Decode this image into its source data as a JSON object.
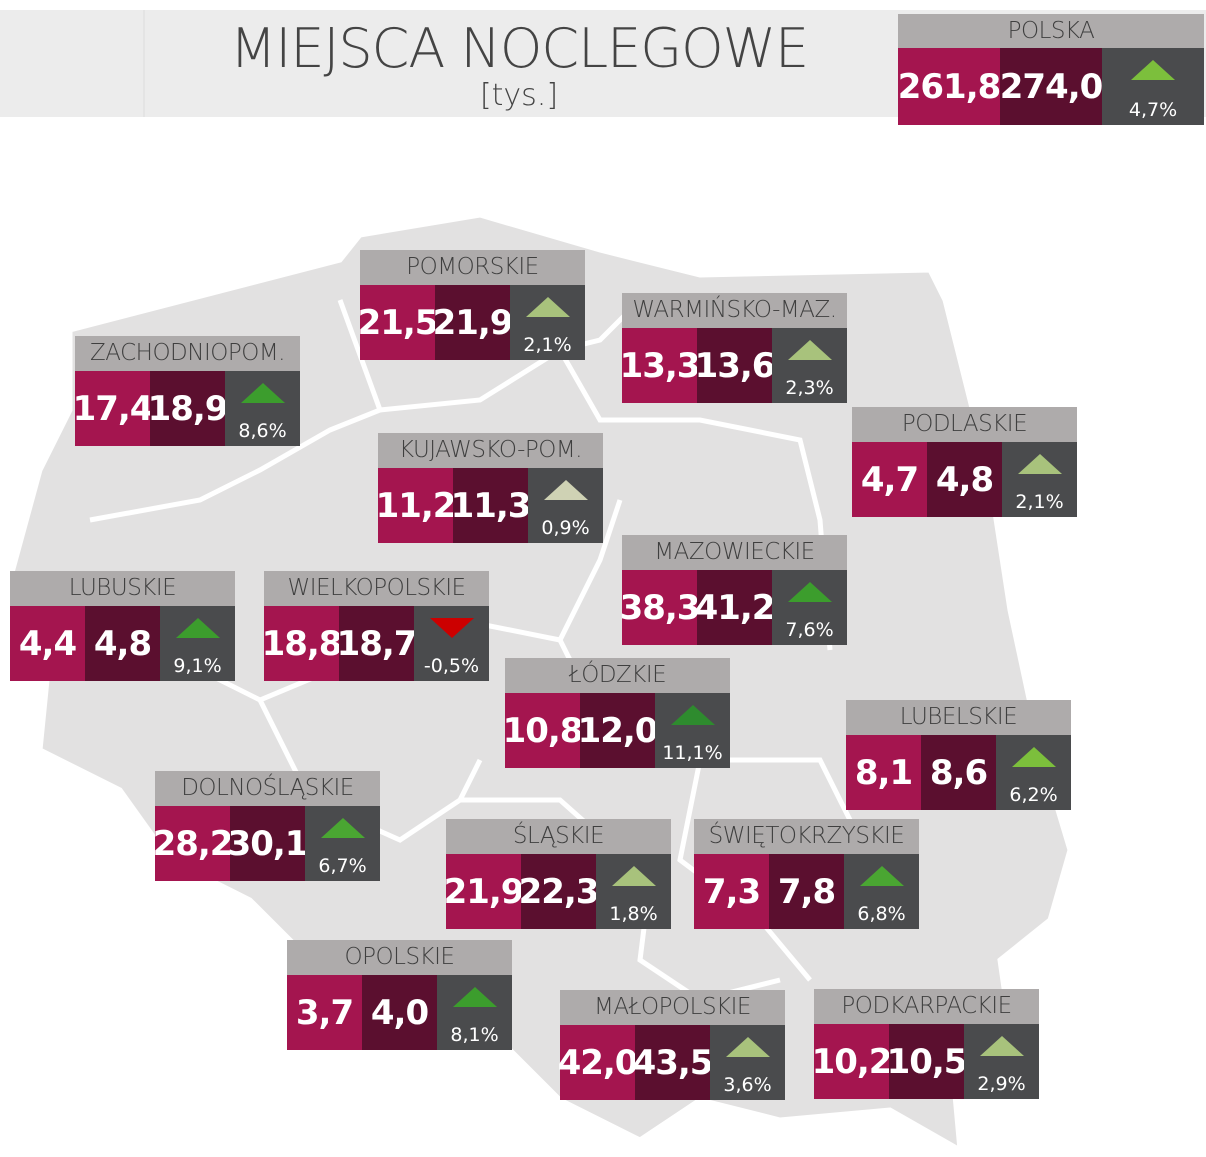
{
  "header": {
    "title": "MIEJSCA NOCLEGOWE",
    "subtitle": "[tys.]"
  },
  "country": {
    "name": "POLSKA",
    "value_prev": "261,8",
    "value_curr": "274,0",
    "change": "4,7%",
    "arrow_color": "#7cbf3c"
  },
  "regions": [
    {
      "name": "POMORSKIE",
      "value_prev": "21,5",
      "value_curr": "21,9",
      "change": "2,1%",
      "arrow_color": "#a8c27c"
    },
    {
      "name": "ZACHODNIOPOM.",
      "value_prev": "17,4",
      "value_curr": "18,9",
      "change": "8,6%",
      "arrow_color": "#3c9d2d"
    },
    {
      "name": "WARMIŃSKO-MAZ.",
      "value_prev": "13,3",
      "value_curr": "13,6",
      "change": "2,3%",
      "arrow_color": "#a8c27c"
    },
    {
      "name": "PODLASKIE",
      "value_prev": "4,7",
      "value_curr": "4,8",
      "change": "2,1%",
      "arrow_color": "#a8c27c"
    },
    {
      "name": "KUJAWSKO-POM.",
      "value_prev": "11,2",
      "value_curr": "11,3",
      "change": "0,9%",
      "arrow_color": "#cfd2b4"
    },
    {
      "name": "MAZOWIECKIE",
      "value_prev": "38,3",
      "value_curr": "41,2",
      "change": "7,6%",
      "arrow_color": "#3c9d2d"
    },
    {
      "name": "LUBUSKIE",
      "value_prev": "4,4",
      "value_curr": "4,8",
      "change": "9,1%",
      "arrow_color": "#3c9d2d"
    },
    {
      "name": "WIELKOPOLSKIE",
      "value_prev": "18,8",
      "value_curr": "18,7",
      "change": "-0,5%",
      "arrow_color": "#cc0000"
    },
    {
      "name": "ŁÓDZKIE",
      "value_prev": "10,8",
      "value_curr": "12,0",
      "change": "11,1%",
      "arrow_color": "#2e8b2e"
    },
    {
      "name": "LUBELSKIE",
      "value_prev": "8,1",
      "value_curr": "8,6",
      "change": "6,2%",
      "arrow_color": "#7cbf3c"
    },
    {
      "name": "DOLNOŚLĄSKIE",
      "value_prev": "28,2",
      "value_curr": "30,1",
      "change": "6,7%",
      "arrow_color": "#4aa632"
    },
    {
      "name": "ŚLĄSKIE",
      "value_prev": "21,9",
      "value_curr": "22,3",
      "change": "1,8%",
      "arrow_color": "#a8c27c"
    },
    {
      "name": "ŚWIĘTOKRZYSKIE",
      "value_prev": "7,3",
      "value_curr": "7,8",
      "change": "6,8%",
      "arrow_color": "#4aa632"
    },
    {
      "name": "OPOLSKIE",
      "value_prev": "3,7",
      "value_curr": "4,0",
      "change": "8,1%",
      "arrow_color": "#3c9d2d"
    },
    {
      "name": "MAŁOPOLSKIE",
      "value_prev": "42,0",
      "value_curr": "43,5",
      "change": "3,6%",
      "arrow_color": "#a8c27c"
    },
    {
      "name": "PODKARPACKIE",
      "value_prev": "10,2",
      "value_curr": "10,5",
      "change": "2,9%",
      "arrow_color": "#a8c27c"
    }
  ]
}
